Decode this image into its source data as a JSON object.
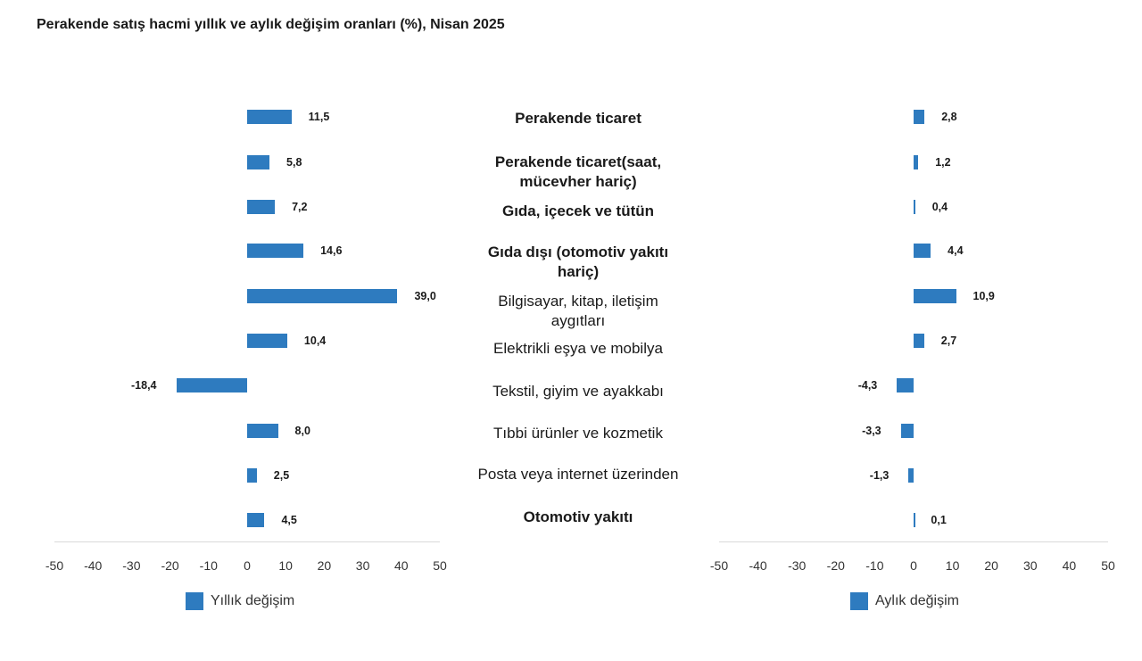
{
  "title": "Perakende satış hacmi yıllık ve aylık değişim oranları (%), Nisan 2025",
  "chart_data": {
    "type": "bar",
    "orientation": "horizontal",
    "title": "Perakende satış hacmi yıllık ve aylık değişim oranları (%), Nisan 2025",
    "categories": [
      {
        "label": "Perakende ticaret",
        "bold": true
      },
      {
        "label": "Perakende ticaret(saat,\nmücevher hariç)",
        "bold": true
      },
      {
        "label": "Gıda, içecek ve tütün",
        "bold": true
      },
      {
        "label": "Gıda dışı (otomotiv yakıtı\nhariç)",
        "bold": true
      },
      {
        "label": "Bilgisayar, kitap, iletişim\naygıtları",
        "bold": false
      },
      {
        "label": "Elektrikli eşya ve mobilya",
        "bold": false
      },
      {
        "label": "Tekstil, giyim ve ayakkabı",
        "bold": false
      },
      {
        "label": "Tıbbi ürünler ve kozmetik",
        "bold": false
      },
      {
        "label": "Posta veya internet üzerinden",
        "bold": false
      },
      {
        "label": "Otomotiv yakıtı",
        "bold": true
      }
    ],
    "panels": [
      {
        "series_name": "Yıllık değişim",
        "values": [
          11.5,
          5.8,
          7.2,
          14.6,
          39.0,
          10.4,
          -18.4,
          8.0,
          2.5,
          4.5
        ],
        "value_labels": [
          "11,5",
          "5,8",
          "7,2",
          "14,6",
          "39,0",
          "10,4",
          "-18,4",
          "8,0",
          "2,5",
          "4,5"
        ],
        "xlim": [
          -50,
          50
        ],
        "ticks": [
          "-50",
          "-40",
          "-30",
          "-20",
          "-10",
          "0",
          "10",
          "20",
          "30",
          "40",
          "50"
        ]
      },
      {
        "series_name": "Aylık değişim",
        "values": [
          2.8,
          1.2,
          0.4,
          4.4,
          10.9,
          2.7,
          -4.3,
          -3.3,
          -1.3,
          0.1
        ],
        "value_labels": [
          "2,8",
          "1,2",
          "0,4",
          "4,4",
          "10,9",
          "2,7",
          "-4,3",
          "-3,3",
          "-1,3",
          "0,1"
        ],
        "xlim": [
          -50,
          50
        ],
        "ticks": [
          "-50",
          "-40",
          "-30",
          "-20",
          "-10",
          "0",
          "10",
          "20",
          "30",
          "40",
          "50"
        ]
      }
    ],
    "color": "#2e7bbf",
    "grid": false,
    "legend": "bottom-left"
  }
}
